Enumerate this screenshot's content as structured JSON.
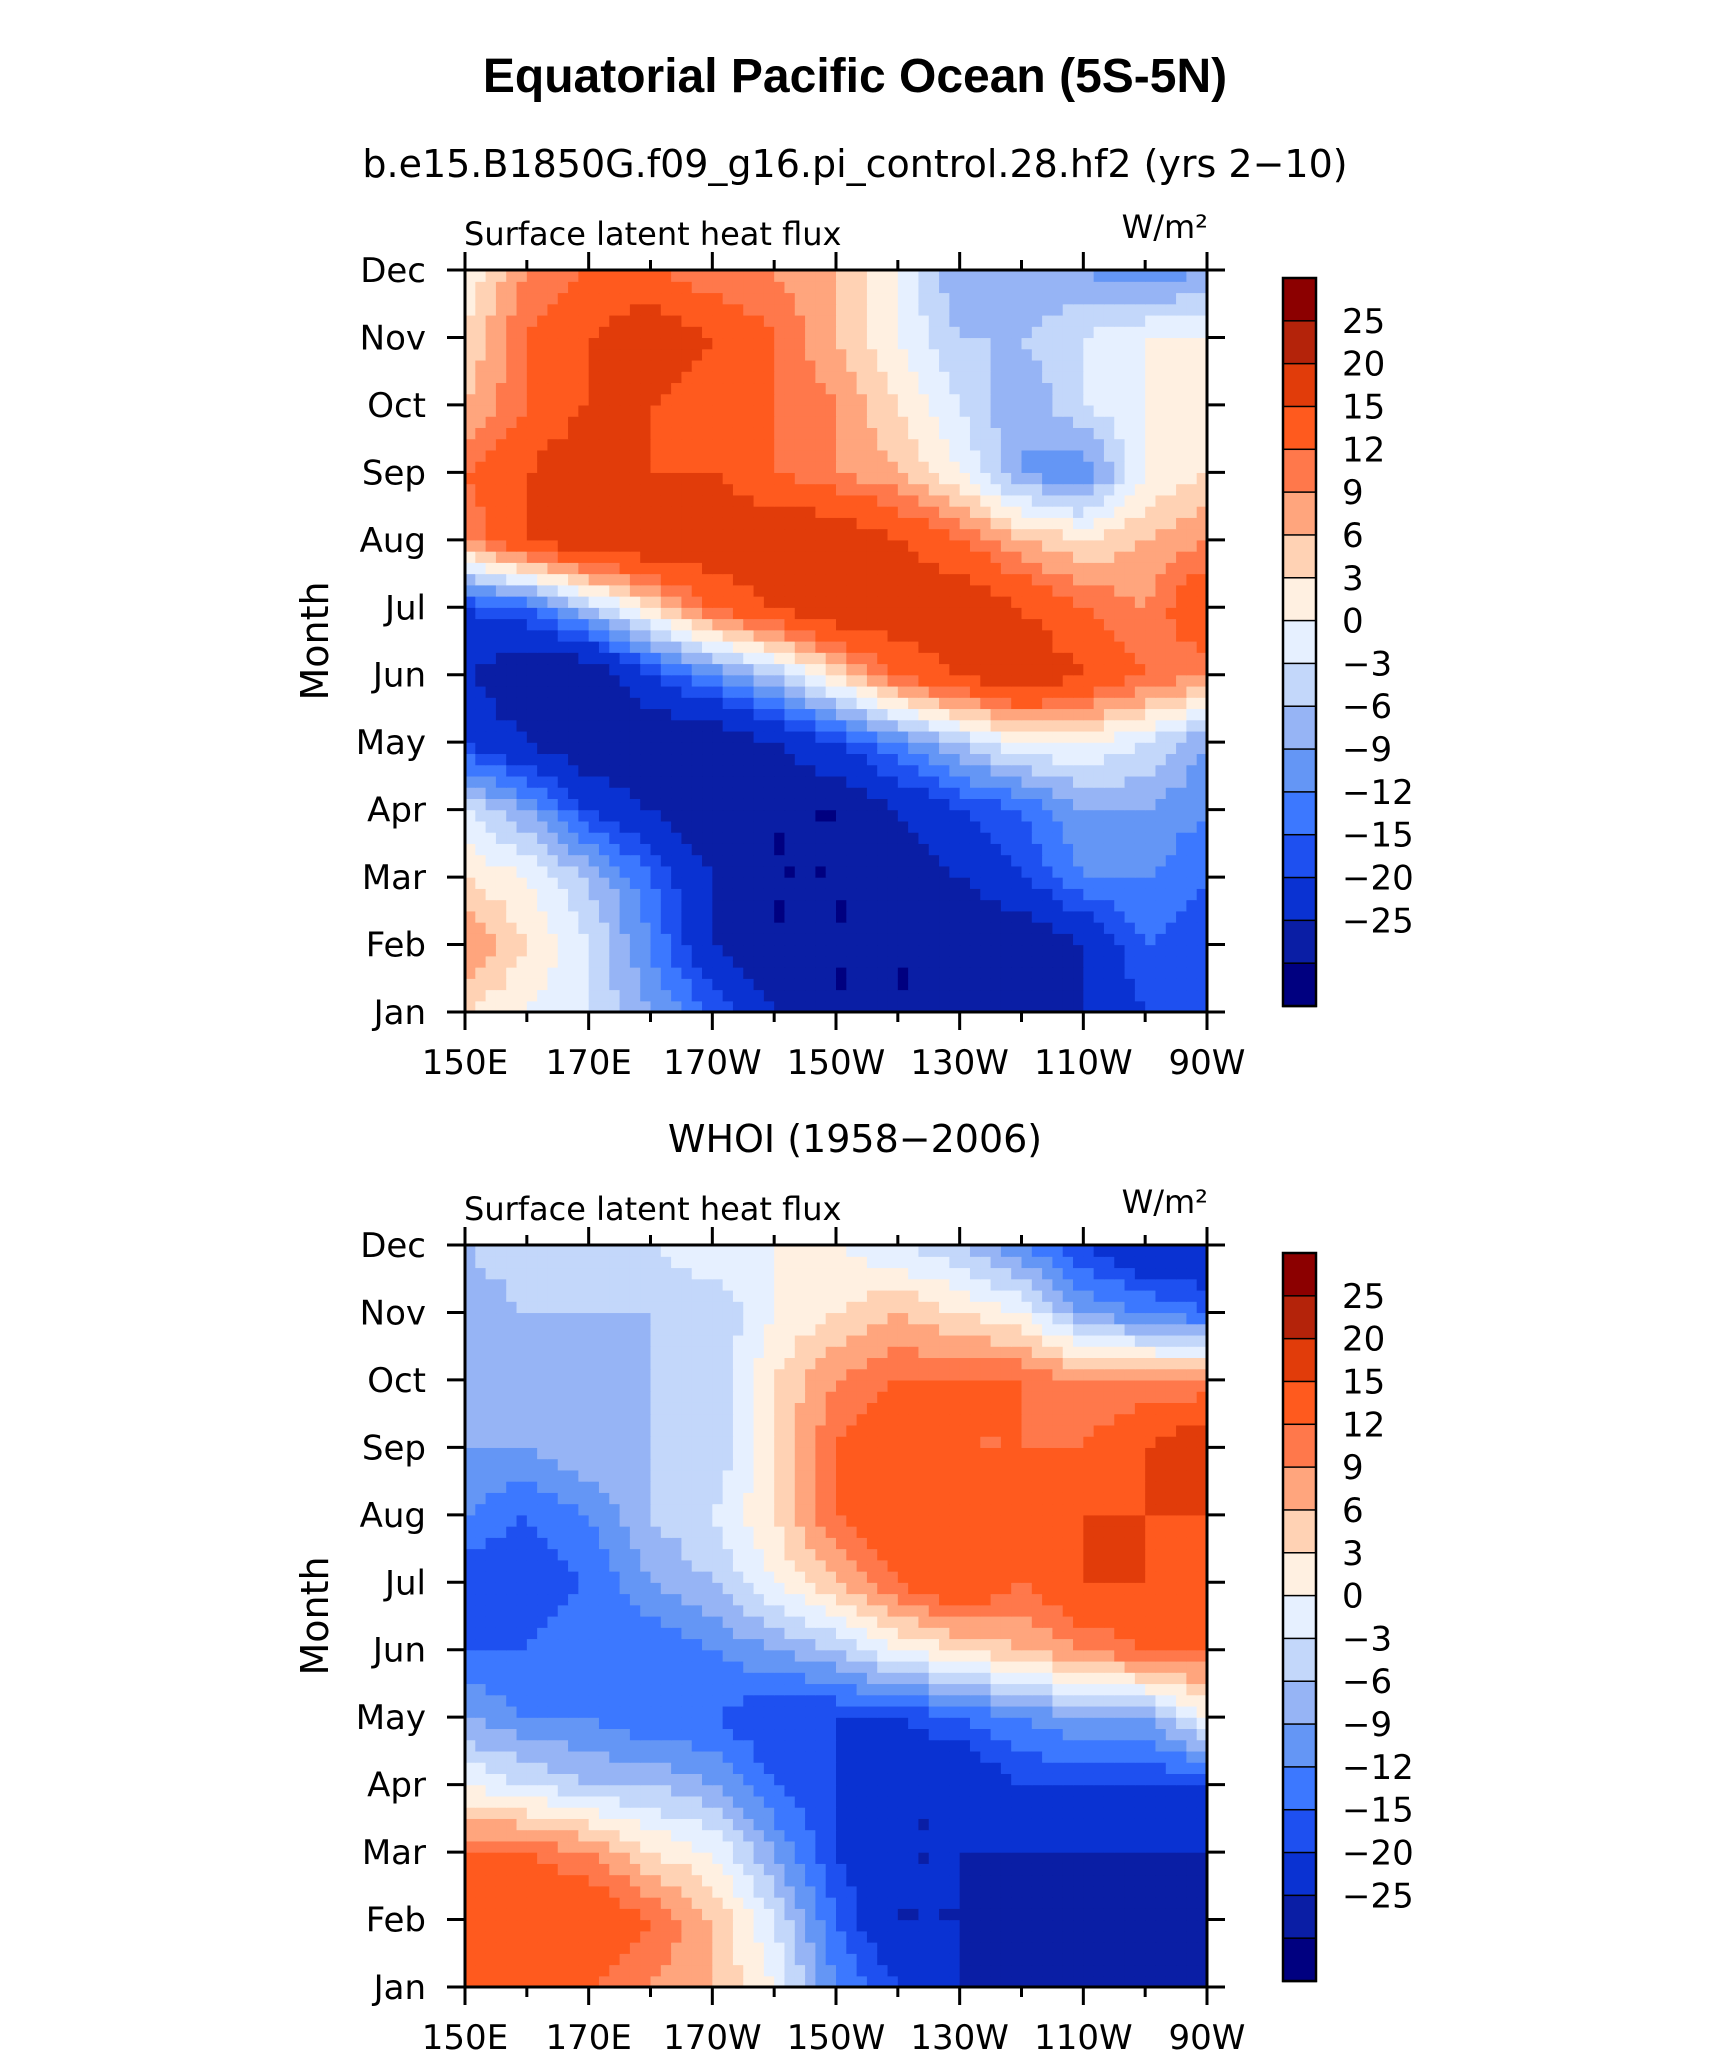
{
  "figure": {
    "title": "Equatorial Pacific Ocean (5S-5N)"
  },
  "chart_data": [
    {
      "type": "heatmap",
      "title": "b.e15.B1850G.f09_g16.pi_control.28.hf2 (yrs 2−10)",
      "variable": "Surface latent heat flux",
      "units": "W/m²",
      "ylabel": "Month",
      "xlabel": "",
      "x_ticks": [
        "150E",
        "170E",
        "170W",
        "150W",
        "130W",
        "110W",
        "90W"
      ],
      "y_ticks": [
        "Jan",
        "Feb",
        "Mar",
        "Apr",
        "May",
        "Jun",
        "Jul",
        "Aug",
        "Sep",
        "Oct",
        "Nov",
        "Dec"
      ],
      "x_range": [
        "150E",
        "90W"
      ],
      "colorbar_levels": [
        -25,
        -20,
        -15,
        -12,
        -9,
        -6,
        -3,
        0,
        3,
        6,
        9,
        12,
        15,
        20,
        25
      ],
      "colorbar_labels": [
        "25",
        "20",
        "15",
        "12",
        "9",
        "6",
        "3",
        "0",
        "−3",
        "−6",
        "−9",
        "−12",
        "−15",
        "−20",
        "−25"
      ],
      "grid": [
        [
          6,
          3,
          0,
          -6,
          -12,
          -20,
          -25,
          -25,
          -25,
          -25,
          -20,
          -15,
          -12
        ],
        [
          12,
          6,
          0,
          -9,
          -20,
          -25,
          -25,
          -25,
          -25,
          -25,
          -20,
          -12,
          -15
        ],
        [
          6,
          3,
          -3,
          -12,
          -20,
          -25,
          -25,
          -25,
          -20,
          -15,
          -9,
          -9,
          -12
        ],
        [
          0,
          -6,
          -15,
          -20,
          -25,
          -25,
          -25,
          -20,
          -15,
          -12,
          -6,
          -6,
          -9
        ],
        [
          -15,
          -20,
          -25,
          -25,
          -25,
          -20,
          -15,
          -9,
          -3,
          3,
          3,
          0,
          -6
        ],
        [
          -20,
          -25,
          -25,
          -15,
          -9,
          -3,
          6,
          15,
          20,
          25,
          20,
          15,
          12
        ],
        [
          -15,
          -12,
          -3,
          6,
          15,
          20,
          25,
          25,
          25,
          20,
          15,
          12,
          20
        ],
        [
          12,
          20,
          25,
          25,
          25,
          25,
          25,
          20,
          15,
          9,
          6,
          9,
          12
        ],
        [
          15,
          20,
          25,
          20,
          20,
          15,
          12,
          9,
          3,
          -6,
          -9,
          3,
          6
        ],
        [
          9,
          15,
          20,
          20,
          15,
          15,
          12,
          6,
          0,
          -6,
          0,
          3,
          6
        ],
        [
          6,
          15,
          20,
          25,
          20,
          15,
          9,
          3,
          -3,
          -3,
          0,
          3,
          3
        ],
        [
          3,
          12,
          15,
          15,
          12,
          12,
          9,
          3,
          -6,
          -6,
          -6,
          -9,
          -6
        ]
      ]
    },
    {
      "type": "heatmap",
      "title": "WHOI (1958−2006)",
      "variable": "Surface latent heat flux",
      "units": "W/m²",
      "ylabel": "Month",
      "xlabel": "",
      "x_ticks": [
        "150E",
        "170E",
        "170W",
        "150W",
        "130W",
        "110W",
        "90W"
      ],
      "y_ticks": [
        "Jan",
        "Feb",
        "Mar",
        "Apr",
        "May",
        "Jun",
        "Jul",
        "Aug",
        "Sep",
        "Oct",
        "Nov",
        "Dec"
      ],
      "x_range": [
        "150E",
        "90W"
      ],
      "colorbar_levels": [
        -25,
        -20,
        -15,
        -12,
        -9,
        -6,
        -3,
        0,
        3,
        6,
        9,
        12,
        15,
        20,
        25
      ],
      "colorbar_labels": [
        "25",
        "20",
        "15",
        "12",
        "9",
        "6",
        "3",
        "0",
        "−3",
        "−6",
        "−9",
        "−12",
        "−15",
        "−20",
        "−25"
      ],
      "grid": [
        [
          15,
          20,
          15,
          12,
          9,
          3,
          -9,
          -15,
          -20,
          -20,
          -25,
          -25,
          -25
        ],
        [
          20,
          20,
          20,
          15,
          9,
          0,
          -12,
          -20,
          -20,
          -25,
          -25,
          -25,
          -25
        ],
        [
          15,
          15,
          12,
          6,
          3,
          -6,
          -15,
          -20,
          -20,
          -20,
          -20,
          -20,
          -20
        ],
        [
          3,
          0,
          -3,
          -3,
          -6,
          -12,
          -15,
          -20,
          -20,
          -15,
          -15,
          -15,
          -15
        ],
        [
          -6,
          -9,
          -9,
          -12,
          -12,
          -15,
          -15,
          -15,
          -12,
          -9,
          -6,
          -6,
          3
        ],
        [
          -12,
          -12,
          -9,
          -12,
          -9,
          -6,
          -3,
          3,
          6,
          9,
          12,
          15,
          15
        ],
        [
          -15,
          -15,
          -12,
          -6,
          -3,
          3,
          9,
          15,
          20,
          15,
          20,
          20,
          15
        ],
        [
          -9,
          -12,
          -9,
          -3,
          0,
          6,
          15,
          20,
          20,
          15,
          20,
          20,
          20
        ],
        [
          -6,
          -6,
          -3,
          -3,
          -3,
          6,
          15,
          20,
          15,
          15,
          15,
          20,
          25
        ],
        [
          -3,
          -6,
          -6,
          -3,
          -3,
          6,
          12,
          15,
          15,
          15,
          12,
          12,
          12
        ],
        [
          -6,
          -3,
          -3,
          -3,
          -3,
          3,
          6,
          9,
          6,
          3,
          -6,
          -9,
          -12
        ],
        [
          -3,
          0,
          0,
          0,
          3,
          3,
          3,
          0,
          -3,
          -9,
          -15,
          -20,
          -20
        ]
      ]
    }
  ],
  "colors": {
    "levels_fill": [
      "#000080",
      "#0a1ea5",
      "#0a32d2",
      "#1e50f0",
      "#3c78ff",
      "#6496f5",
      "#96b4f5",
      "#c3d7fa",
      "#e6f0ff",
      "#fff0e1",
      "#ffd2b4",
      "#ffa57d",
      "#ff784b",
      "#ff5a1e",
      "#e13c0a",
      "#b4230a",
      "#8c0000"
    ]
  }
}
